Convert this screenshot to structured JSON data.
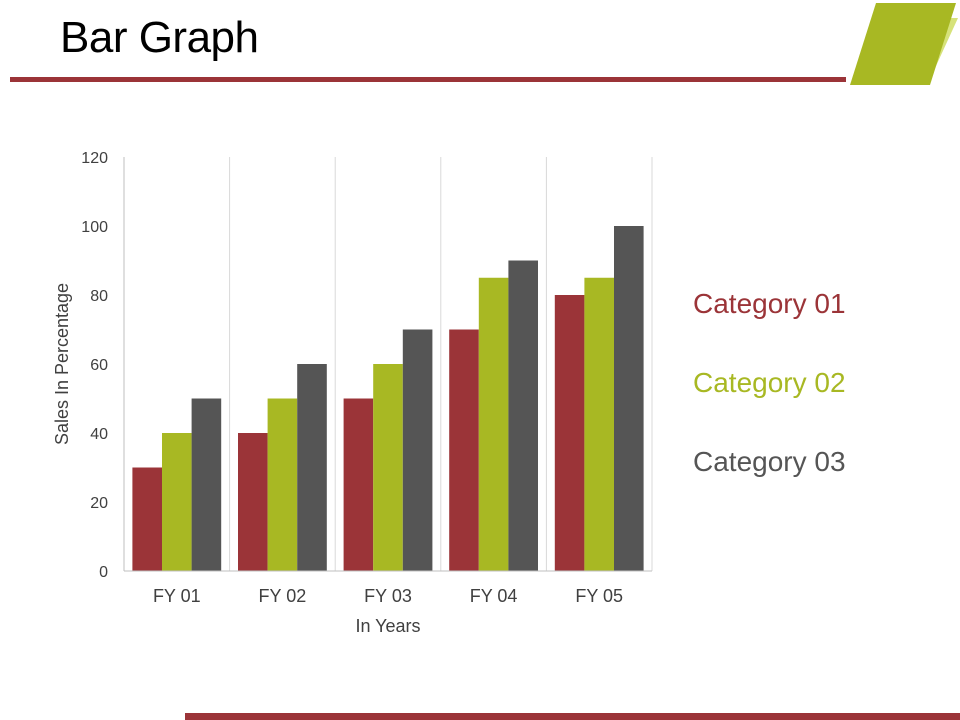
{
  "slide": {
    "title": "Bar Graph"
  },
  "colors": {
    "accent_red": "#9b3438",
    "accent_green": "#a8b823",
    "accent_gray": "#555555",
    "deco_light_green": "#d6e27a"
  },
  "chart_data": {
    "type": "bar",
    "categories": [
      "FY 01",
      "FY 02",
      "FY 03",
      "FY 04",
      "FY 05"
    ],
    "series": [
      {
        "name": "Category 01",
        "color": "#9b3438",
        "values": [
          30,
          40,
          50,
          70,
          80
        ]
      },
      {
        "name": "Category 02",
        "color": "#a8b823",
        "values": [
          40,
          50,
          60,
          85,
          85
        ]
      },
      {
        "name": "Category 03",
        "color": "#555555",
        "values": [
          50,
          60,
          70,
          90,
          100
        ]
      }
    ],
    "xlabel": "In Years",
    "ylabel": "Sales In Percentage",
    "ylim": [
      0,
      120
    ],
    "yticks": [
      0,
      20,
      40,
      60,
      80,
      100,
      120
    ],
    "grid": "vertical category separators",
    "legend_position": "right"
  }
}
